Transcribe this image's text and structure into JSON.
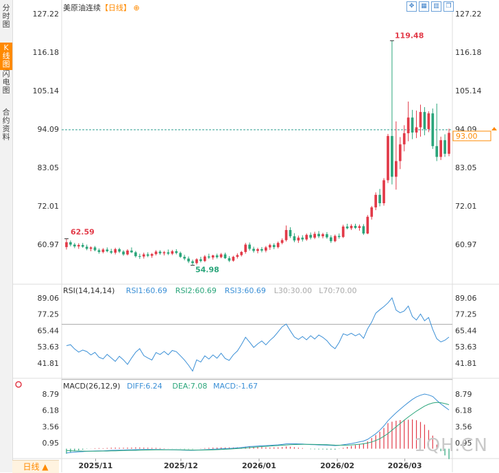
{
  "sidebar": {
    "tabs": [
      {
        "label": "分时图",
        "active": false
      },
      {
        "label": "K线图",
        "active": true
      },
      {
        "label": "闪电图",
        "active": false
      },
      {
        "label": "合约资料",
        "active": false
      }
    ]
  },
  "header": {
    "symbol": "美原油连续",
    "period": "【日线】",
    "settings_icon": "circle-plus-icon",
    "tools": [
      "expand-icon",
      "grid-icon",
      "bars-icon",
      "window-icon"
    ]
  },
  "bottom_tab": "日线 ▲",
  "watermark": "1QH.CN",
  "colors": {
    "up": "#e23a48",
    "down": "#2aa57a",
    "rsi": "#3a8fd6",
    "dif": "#3a8fd6",
    "dea": "#2aa57a",
    "ref": "#aaaaaa",
    "price_line": "#2a9d8f",
    "current": "#ff8a00",
    "high_label": "#e23a48",
    "low_label": "#2aa57a"
  },
  "chart_data": [
    {
      "type": "candlestick",
      "title": "美原油连续【日线】",
      "yticks_left": [
        "127.22",
        "116.18",
        "105.14",
        "94.09",
        "83.05",
        "72.01",
        "60.97"
      ],
      "yticks_right": [
        "127.22",
        "116.18",
        "105.14",
        "94.09",
        "83.05",
        "72.01",
        "60.97"
      ],
      "ylim": [
        60.97,
        127.22
      ],
      "xticks": [
        "2025/11",
        "2025/12",
        "2026/01",
        "2026/02",
        "2026/03"
      ],
      "current_price": "93.00",
      "annotations": {
        "high": "119.48",
        "low": "54.98",
        "start": "62.59"
      },
      "series": [
        {
          "o": 60.2,
          "h": 62.6,
          "l": 59.5,
          "c": 61.6
        },
        {
          "o": 61.6,
          "h": 62.1,
          "l": 60.4,
          "c": 60.9
        },
        {
          "o": 60.9,
          "h": 61.4,
          "l": 59.9,
          "c": 60.4
        },
        {
          "o": 60.4,
          "h": 61.3,
          "l": 59.7,
          "c": 60.8
        },
        {
          "o": 60.8,
          "h": 61.4,
          "l": 60.0,
          "c": 60.3
        },
        {
          "o": 60.3,
          "h": 60.9,
          "l": 59.3,
          "c": 59.7
        },
        {
          "o": 59.7,
          "h": 60.4,
          "l": 59.0,
          "c": 60.1
        },
        {
          "o": 60.1,
          "h": 60.5,
          "l": 59.0,
          "c": 59.3
        },
        {
          "o": 59.3,
          "h": 59.8,
          "l": 58.3,
          "c": 58.8
        },
        {
          "o": 58.8,
          "h": 59.9,
          "l": 58.4,
          "c": 59.5
        },
        {
          "o": 59.5,
          "h": 60.1,
          "l": 58.7,
          "c": 59.0
        },
        {
          "o": 59.0,
          "h": 59.7,
          "l": 58.2,
          "c": 58.6
        },
        {
          "o": 58.6,
          "h": 60.0,
          "l": 58.1,
          "c": 59.6
        },
        {
          "o": 59.6,
          "h": 60.0,
          "l": 58.5,
          "c": 58.9
        },
        {
          "o": 58.9,
          "h": 59.3,
          "l": 57.7,
          "c": 58.1
        },
        {
          "o": 58.1,
          "h": 59.6,
          "l": 57.8,
          "c": 59.2
        },
        {
          "o": 59.2,
          "h": 60.1,
          "l": 58.5,
          "c": 58.7
        },
        {
          "o": 58.7,
          "h": 59.1,
          "l": 57.2,
          "c": 57.6
        },
        {
          "o": 57.6,
          "h": 58.3,
          "l": 56.8,
          "c": 57.5
        },
        {
          "o": 57.5,
          "h": 58.6,
          "l": 56.9,
          "c": 58.1
        },
        {
          "o": 58.1,
          "h": 58.7,
          "l": 57.3,
          "c": 57.7
        },
        {
          "o": 57.7,
          "h": 58.5,
          "l": 57.1,
          "c": 58.2
        },
        {
          "o": 58.2,
          "h": 59.3,
          "l": 57.8,
          "c": 58.9
        },
        {
          "o": 58.9,
          "h": 59.3,
          "l": 58.0,
          "c": 58.4
        },
        {
          "o": 58.4,
          "h": 59.1,
          "l": 57.8,
          "c": 58.7
        },
        {
          "o": 58.7,
          "h": 59.5,
          "l": 57.9,
          "c": 58.3
        },
        {
          "o": 58.3,
          "h": 59.4,
          "l": 57.9,
          "c": 59.0
        },
        {
          "o": 59.0,
          "h": 59.6,
          "l": 58.1,
          "c": 58.5
        },
        {
          "o": 58.5,
          "h": 58.9,
          "l": 57.1,
          "c": 57.4
        },
        {
          "o": 57.4,
          "h": 58.0,
          "l": 56.4,
          "c": 56.9
        },
        {
          "o": 56.9,
          "h": 57.5,
          "l": 55.6,
          "c": 56.1
        },
        {
          "o": 56.1,
          "h": 56.6,
          "l": 54.98,
          "c": 55.6
        },
        {
          "o": 55.6,
          "h": 57.0,
          "l": 55.2,
          "c": 56.7
        },
        {
          "o": 56.7,
          "h": 57.4,
          "l": 55.8,
          "c": 56.2
        },
        {
          "o": 56.2,
          "h": 57.9,
          "l": 55.9,
          "c": 57.5
        },
        {
          "o": 57.5,
          "h": 58.3,
          "l": 56.8,
          "c": 57.2
        },
        {
          "o": 57.2,
          "h": 58.0,
          "l": 56.6,
          "c": 57.8
        },
        {
          "o": 57.8,
          "h": 58.3,
          "l": 56.9,
          "c": 57.3
        },
        {
          "o": 57.3,
          "h": 58.5,
          "l": 57.0,
          "c": 58.1
        },
        {
          "o": 58.1,
          "h": 58.6,
          "l": 56.8,
          "c": 57.0
        },
        {
          "o": 57.0,
          "h": 57.6,
          "l": 55.9,
          "c": 56.3
        },
        {
          "o": 56.3,
          "h": 57.7,
          "l": 56.0,
          "c": 57.4
        },
        {
          "o": 57.4,
          "h": 58.4,
          "l": 56.9,
          "c": 57.9
        },
        {
          "o": 57.9,
          "h": 59.1,
          "l": 57.5,
          "c": 58.8
        },
        {
          "o": 58.8,
          "h": 61.4,
          "l": 58.3,
          "c": 60.9
        },
        {
          "o": 60.9,
          "h": 61.5,
          "l": 59.2,
          "c": 59.7
        },
        {
          "o": 59.7,
          "h": 60.3,
          "l": 58.6,
          "c": 59.1
        },
        {
          "o": 59.1,
          "h": 60.0,
          "l": 58.4,
          "c": 59.6
        },
        {
          "o": 59.6,
          "h": 60.2,
          "l": 58.7,
          "c": 59.2
        },
        {
          "o": 59.2,
          "h": 60.5,
          "l": 58.7,
          "c": 60.1
        },
        {
          "o": 60.1,
          "h": 61.2,
          "l": 59.4,
          "c": 60.8
        },
        {
          "o": 60.8,
          "h": 61.3,
          "l": 59.6,
          "c": 60.2
        },
        {
          "o": 60.2,
          "h": 61.8,
          "l": 59.8,
          "c": 61.4
        },
        {
          "o": 61.4,
          "h": 62.7,
          "l": 61.0,
          "c": 62.2
        },
        {
          "o": 62.2,
          "h": 66.4,
          "l": 61.8,
          "c": 65.1
        },
        {
          "o": 65.1,
          "h": 65.9,
          "l": 62.8,
          "c": 63.3
        },
        {
          "o": 63.3,
          "h": 64.2,
          "l": 61.6,
          "c": 62.1
        },
        {
          "o": 62.1,
          "h": 63.5,
          "l": 61.4,
          "c": 62.9
        },
        {
          "o": 62.9,
          "h": 63.6,
          "l": 61.8,
          "c": 62.4
        },
        {
          "o": 62.4,
          "h": 64.1,
          "l": 62.0,
          "c": 63.7
        },
        {
          "o": 63.7,
          "h": 64.4,
          "l": 62.4,
          "c": 62.9
        },
        {
          "o": 62.9,
          "h": 64.6,
          "l": 62.5,
          "c": 64.0
        },
        {
          "o": 64.0,
          "h": 64.8,
          "l": 62.8,
          "c": 63.3
        },
        {
          "o": 63.3,
          "h": 64.3,
          "l": 62.7,
          "c": 63.9
        },
        {
          "o": 63.9,
          "h": 64.5,
          "l": 62.6,
          "c": 63.0
        },
        {
          "o": 63.0,
          "h": 63.6,
          "l": 61.4,
          "c": 61.9
        },
        {
          "o": 61.9,
          "h": 63.8,
          "l": 61.6,
          "c": 63.4
        },
        {
          "o": 63.4,
          "h": 64.1,
          "l": 62.6,
          "c": 63.1
        },
        {
          "o": 63.1,
          "h": 66.6,
          "l": 62.8,
          "c": 66.1
        },
        {
          "o": 66.1,
          "h": 66.9,
          "l": 65.3,
          "c": 65.6
        },
        {
          "o": 65.6,
          "h": 66.8,
          "l": 65.1,
          "c": 66.3
        },
        {
          "o": 66.3,
          "h": 66.9,
          "l": 65.4,
          "c": 65.7
        },
        {
          "o": 65.7,
          "h": 66.7,
          "l": 64.9,
          "c": 66.2
        },
        {
          "o": 66.2,
          "h": 66.8,
          "l": 63.7,
          "c": 64.1
        },
        {
          "o": 64.1,
          "h": 69.4,
          "l": 63.9,
          "c": 68.9
        },
        {
          "o": 68.9,
          "h": 72.0,
          "l": 68.1,
          "c": 71.6
        },
        {
          "o": 71.6,
          "h": 75.9,
          "l": 70.8,
          "c": 75.2
        },
        {
          "o": 75.2,
          "h": 76.9,
          "l": 71.9,
          "c": 72.8
        },
        {
          "o": 72.8,
          "h": 80.0,
          "l": 72.1,
          "c": 79.4
        },
        {
          "o": 79.4,
          "h": 92.7,
          "l": 78.6,
          "c": 92.1
        },
        {
          "o": 92.1,
          "h": 119.48,
          "l": 78.2,
          "c": 80.4
        },
        {
          "o": 80.4,
          "h": 96.3,
          "l": 76.7,
          "c": 84.9
        },
        {
          "o": 84.9,
          "h": 91.8,
          "l": 82.6,
          "c": 89.7
        },
        {
          "o": 89.7,
          "h": 95.2,
          "l": 87.7,
          "c": 92.9
        },
        {
          "o": 92.9,
          "h": 102.0,
          "l": 90.6,
          "c": 97.4
        },
        {
          "o": 97.4,
          "h": 99.6,
          "l": 91.2,
          "c": 93.1
        },
        {
          "o": 93.1,
          "h": 99.4,
          "l": 91.5,
          "c": 94.6
        },
        {
          "o": 94.6,
          "h": 101.1,
          "l": 91.9,
          "c": 99.0
        },
        {
          "o": 99.0,
          "h": 100.4,
          "l": 92.3,
          "c": 94.1
        },
        {
          "o": 94.1,
          "h": 99.2,
          "l": 93.2,
          "c": 98.6
        },
        {
          "o": 98.6,
          "h": 100.0,
          "l": 88.4,
          "c": 89.2
        },
        {
          "o": 89.2,
          "h": 101.4,
          "l": 84.9,
          "c": 86.1
        },
        {
          "o": 86.1,
          "h": 91.9,
          "l": 85.2,
          "c": 90.9
        },
        {
          "o": 90.9,
          "h": 92.6,
          "l": 86.1,
          "c": 87.0
        },
        {
          "o": 87.0,
          "h": 94.2,
          "l": 86.3,
          "c": 93.0
        }
      ]
    },
    {
      "type": "line",
      "title": "RSI(14,14,14)",
      "legend": [
        {
          "text": "RSI(14,14,14)",
          "color": "#333333"
        },
        {
          "text": "RSI1:60.69",
          "color": "#3a8fd6"
        },
        {
          "text": "RSI2:60.69",
          "color": "#2aa57a"
        },
        {
          "text": "RSI3:60.69",
          "color": "#3a8fd6"
        },
        {
          "text": "L30:30.00",
          "color": "#aaaaaa"
        },
        {
          "text": "L70:70.00",
          "color": "#aaaaaa"
        }
      ],
      "yticks_left": [
        "89.06",
        "77.25",
        "65.44",
        "53.63",
        "41.81"
      ],
      "yticks_right": [
        "89.06",
        "77.25",
        "65.44",
        "53.63",
        "41.81"
      ],
      "ylim": [
        30,
        95
      ],
      "ref_lines": [
        30,
        70
      ],
      "values": [
        54.5,
        55.2,
        52.1,
        49.8,
        51.3,
        50.2,
        47.8,
        49.6,
        46.1,
        44.9,
        48.2,
        45.6,
        43.1,
        46.8,
        44.2,
        40.9,
        45.6,
        49.7,
        52.3,
        47.3,
        45.6,
        44.1,
        49.5,
        48.1,
        50.3,
        47.9,
        51.0,
        50.1,
        47.2,
        44.1,
        40.3,
        36.1,
        44.2,
        42.6,
        47.1,
        44.8,
        47.8,
        45.4,
        49.0,
        45.2,
        43.8,
        47.9,
        50.6,
        55.3,
        60.6,
        57.1,
        53.2,
        55.8,
        57.9,
        55.1,
        58.3,
        60.9,
        64.5,
        68.1,
        70.1,
        65.3,
        60.8,
        59.0,
        61.1,
        58.7,
        61.7,
        59.3,
        62.2,
        60.5,
        58.1,
        54.5,
        52.3,
        56.8,
        63.1,
        62.0,
        63.5,
        61.6,
        63.1,
        59.8,
        66.7,
        71.5,
        78.0,
        80.5,
        82.8,
        85.5,
        89.1,
        80.2,
        78.3,
        79.6,
        83.2,
        75.6,
        73.1,
        77.4,
        72.5,
        74.9,
        66.3,
        59.5,
        57.2,
        58.4,
        60.69
      ]
    },
    {
      "type": "line",
      "title": "MACD(26,12,9)",
      "legend": [
        {
          "text": "MACD(26,12,9)",
          "color": "#333333"
        },
        {
          "text": "DIFF:6.24",
          "color": "#3a8fd6"
        },
        {
          "text": "DEA:7.08",
          "color": "#2aa57a"
        },
        {
          "text": "MACD:-1.67",
          "color": "#3a8fd6"
        }
      ],
      "yticks_left": [
        "8.79",
        "6.18",
        "3.56",
        "0.95"
      ],
      "yticks_right": [
        "8.79",
        "6.18",
        "3.56",
        "0.95"
      ],
      "ylim": [
        -1.5,
        9.6
      ],
      "diff": [
        -0.7,
        -0.61,
        -0.55,
        -0.5,
        -0.47,
        -0.42,
        -0.39,
        -0.36,
        -0.34,
        -0.34,
        -0.31,
        -0.27,
        -0.25,
        -0.24,
        -0.22,
        -0.19,
        -0.18,
        -0.15,
        -0.14,
        -0.13,
        -0.13,
        -0.13,
        -0.12,
        -0.13,
        -0.15,
        -0.16,
        -0.18,
        -0.19,
        -0.21,
        -0.24,
        -0.25,
        -0.26,
        -0.22,
        -0.2,
        -0.16,
        -0.13,
        -0.09,
        -0.06,
        -0.02,
        0.01,
        0.04,
        0.08,
        0.13,
        0.19,
        0.28,
        0.35,
        0.39,
        0.43,
        0.47,
        0.5,
        0.53,
        0.58,
        0.62,
        0.69,
        0.78,
        0.8,
        0.79,
        0.77,
        0.75,
        0.7,
        0.66,
        0.64,
        0.61,
        0.6,
        0.56,
        0.53,
        0.5,
        0.54,
        0.63,
        0.73,
        0.83,
        0.95,
        1.1,
        1.23,
        1.5,
        1.94,
        2.41,
        2.97,
        3.66,
        4.5,
        5.15,
        5.77,
        6.35,
        6.9,
        7.43,
        7.93,
        8.33,
        8.6,
        8.79,
        8.65,
        8.4,
        7.78,
        7.2,
        6.71,
        6.24
      ],
      "dea": [
        -0.3,
        -0.32,
        -0.35,
        -0.37,
        -0.39,
        -0.4,
        -0.4,
        -0.4,
        -0.39,
        -0.38,
        -0.37,
        -0.35,
        -0.34,
        -0.32,
        -0.3,
        -0.28,
        -0.27,
        -0.26,
        -0.24,
        -0.22,
        -0.21,
        -0.2,
        -0.19,
        -0.18,
        -0.18,
        -0.17,
        -0.17,
        -0.18,
        -0.19,
        -0.2,
        -0.21,
        -0.22,
        -0.22,
        -0.22,
        -0.21,
        -0.2,
        -0.18,
        -0.15,
        -0.12,
        -0.09,
        -0.06,
        -0.02,
        0.02,
        0.07,
        0.12,
        0.18,
        0.24,
        0.29,
        0.34,
        0.39,
        0.43,
        0.47,
        0.51,
        0.56,
        0.6,
        0.64,
        0.67,
        0.69,
        0.7,
        0.7,
        0.7,
        0.69,
        0.67,
        0.66,
        0.64,
        0.61,
        0.58,
        0.56,
        0.56,
        0.58,
        0.61,
        0.66,
        0.72,
        0.8,
        0.91,
        1.08,
        1.31,
        1.6,
        1.99,
        2.44,
        2.98,
        3.52,
        4.05,
        4.58,
        5.1,
        5.58,
        6.04,
        6.45,
        6.85,
        7.15,
        7.35,
        7.45,
        7.4,
        7.25,
        7.08
      ],
      "macd": [
        -0.8,
        -0.58,
        -0.4,
        -0.26,
        -0.16,
        -0.04,
        0.02,
        0.08,
        0.1,
        0.08,
        0.12,
        0.16,
        0.18,
        0.16,
        0.16,
        0.18,
        0.18,
        0.22,
        0.2,
        0.18,
        0.16,
        0.14,
        0.14,
        0.1,
        0.06,
        0.02,
        -0.02,
        -0.02,
        -0.04,
        -0.08,
        -0.08,
        -0.08,
        0.0,
        0.04,
        0.1,
        0.14,
        0.18,
        0.18,
        0.2,
        0.2,
        0.2,
        0.2,
        0.22,
        0.24,
        0.32,
        0.34,
        0.3,
        0.28,
        0.26,
        0.22,
        0.2,
        0.22,
        0.22,
        0.26,
        0.36,
        0.32,
        0.24,
        0.16,
        0.1,
        0.0,
        -0.08,
        -0.1,
        -0.12,
        -0.12,
        -0.16,
        -0.16,
        -0.16,
        -0.04,
        0.14,
        0.3,
        0.44,
        0.58,
        0.76,
        0.86,
        1.18,
        1.72,
        2.2,
        2.74,
        3.34,
        4.12,
        4.34,
        4.5,
        4.6,
        4.64,
        4.66,
        4.7,
        4.58,
        4.3,
        3.88,
        3.0,
        2.1,
        0.66,
        -0.4,
        -1.08,
        -1.67
      ]
    }
  ]
}
